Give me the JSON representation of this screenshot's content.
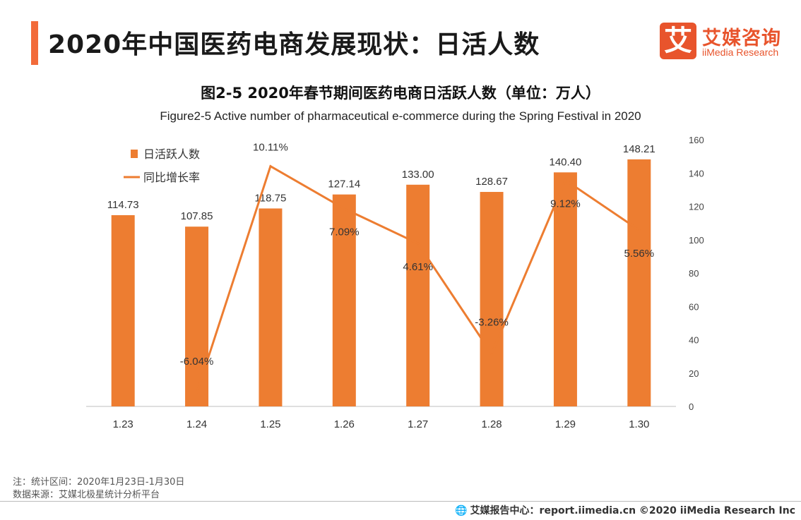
{
  "header": {
    "title": "2020年中国医药电商发展现状：日活人数",
    "logo_mark": "艾",
    "logo_cn": "艾媒咨询",
    "logo_en": "iiMedia Research"
  },
  "chart_data": {
    "type": "bar",
    "title": "图2-5 2020年春节期间医药电商日活跃人数（单位：万人）",
    "subtitle": "Figure2-5 Active number of pharmaceutical e-commerce during the Spring Festival in 2020",
    "categories": [
      "1.23",
      "1.24",
      "1.25",
      "1.26",
      "1.27",
      "1.28",
      "1.29",
      "1.30"
    ],
    "series": [
      {
        "name": "日活跃人数",
        "type": "bar",
        "axis": "right",
        "values": [
          114.73,
          107.85,
          118.75,
          127.14,
          133.0,
          128.67,
          140.4,
          148.21
        ],
        "labels": [
          "114.73",
          "107.85",
          "118.75",
          "127.14",
          "133.00",
          "128.67",
          "140.40",
          "148.21"
        ],
        "color": "#ed7d31"
      },
      {
        "name": "同比增长率",
        "type": "line",
        "values": [
          null,
          -6.04,
          10.11,
          7.09,
          4.61,
          -3.26,
          9.12,
          5.56
        ],
        "labels": [
          "",
          "-6.04%",
          "10.11%",
          "7.09%",
          "4.61%",
          "-3.26%",
          "9.12%",
          "5.56%"
        ],
        "color": "#ed7d31"
      }
    ],
    "right_axis": {
      "min": 0,
      "max": 160,
      "ticks": [
        "0",
        "20",
        "40",
        "60",
        "80",
        "100",
        "120",
        "140",
        "160"
      ]
    },
    "line_axis_range": [
      -7,
      12
    ],
    "legend_position": "top-left",
    "grid": false
  },
  "notes": {
    "line1": "注：统计区间：2020年1月23日-1月30日",
    "line2": "数据来源：艾媒北极星统计分析平台"
  },
  "footer": {
    "icon": "globe-icon",
    "text": "艾媒报告中心：report.iimedia.cn  ©2020  iiMedia Research  Inc"
  }
}
